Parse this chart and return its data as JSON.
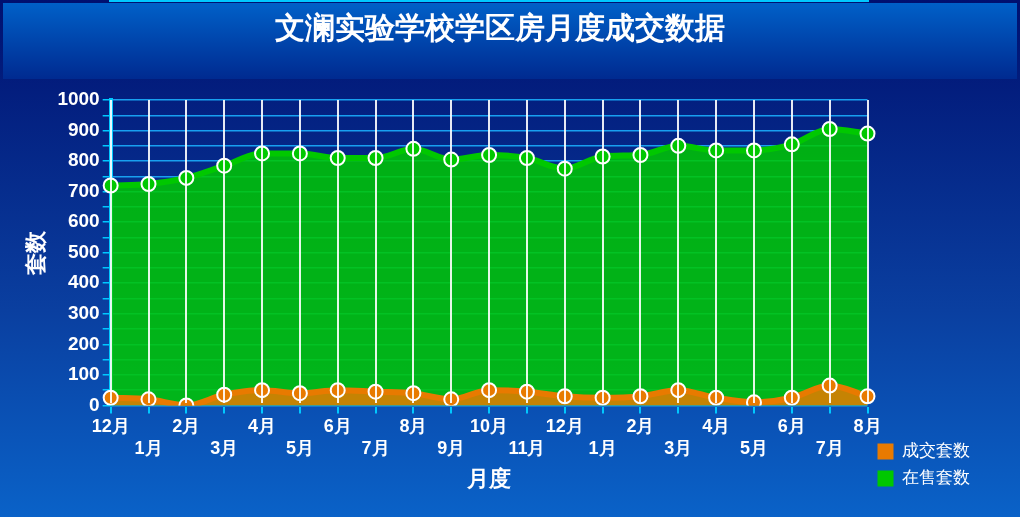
{
  "chart_data": {
    "type": "area",
    "title": "文澜实验学校学区房月度成交数据",
    "xlabel": "月度",
    "ylabel": "套数",
    "categories": [
      "12月",
      "1月",
      "2月",
      "3月",
      "4月",
      "5月",
      "6月",
      "7月",
      "8月",
      "9月",
      "10月",
      "11月",
      "12月",
      "1月",
      "2月",
      "3月",
      "4月",
      "5月",
      "6月",
      "7月",
      "8月"
    ],
    "series": [
      {
        "name": "成交套数",
        "color": "#e87a00",
        "values": [
          25,
          20,
          0,
          35,
          50,
          40,
          50,
          45,
          40,
          20,
          50,
          45,
          30,
          25,
          30,
          50,
          25,
          10,
          25,
          65,
          30
        ]
      },
      {
        "name": "在售套数",
        "color": "#00c800",
        "values": [
          720,
          725,
          745,
          785,
          825,
          825,
          810,
          810,
          840,
          805,
          820,
          810,
          775,
          815,
          820,
          850,
          835,
          835,
          855,
          905,
          890
        ]
      }
    ],
    "ylim": [
      0,
      1000
    ],
    "yticks": [
      0,
      {
        "value": 50,
        "label": null
      },
      100,
      {
        "value": 150,
        "label": null
      },
      200,
      {
        "value": 250,
        "label": null
      },
      300,
      {
        "value": 350,
        "label": null
      },
      400,
      {
        "value": 450,
        "label": null
      },
      500,
      {
        "value": 550,
        "label": null
      },
      600,
      {
        "value": 650,
        "label": null
      },
      700,
      {
        "value": 750,
        "label": null
      },
      800,
      {
        "value": 850,
        "label": null
      },
      900,
      {
        "value": 950,
        "label": null
      },
      1000
    ],
    "grid": true,
    "legend": "right",
    "marker": "circle",
    "line_style": "solid"
  }
}
